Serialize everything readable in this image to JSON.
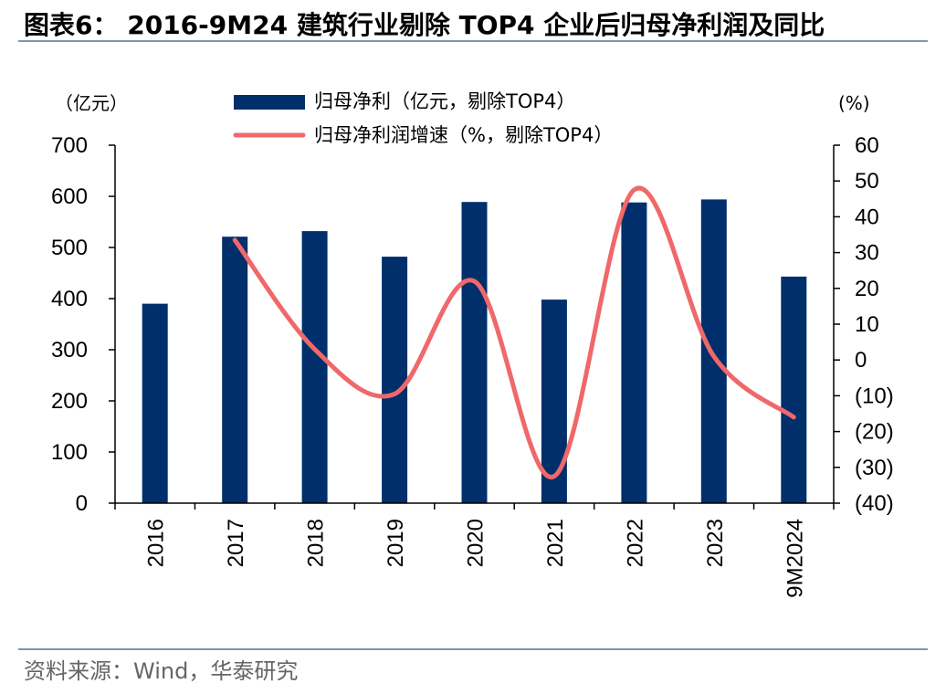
{
  "header": {
    "title": "图表6： 2016-9M24 建筑行业剔除 TOP4 企业后归母净利润及同比"
  },
  "footer": {
    "source": "资料来源：Wind，华泰研究"
  },
  "chart_data": {
    "type": "bar",
    "categories": [
      "2016",
      "2017",
      "2018",
      "2019",
      "2020",
      "2021",
      "2022",
      "2023",
      "9M2024"
    ],
    "series": [
      {
        "name": "归母净利（亿元，剔除TOP4）",
        "type": "bar",
        "axis": "left",
        "color": "#002f6c",
        "values": [
          390,
          521,
          532,
          482,
          589,
          398,
          588,
          594,
          443
        ]
      },
      {
        "name": "归母净利润增速（%，剔除TOP4）",
        "type": "line",
        "axis": "right",
        "color": "#f0686a",
        "values": [
          null,
          33.5,
          3.0,
          -9.5,
          22.0,
          -32.5,
          47.5,
          1.0,
          -16.0
        ]
      }
    ],
    "left_axis": {
      "unit": "（亿元）",
      "ylim": [
        0,
        700
      ],
      "ticks": [
        "0",
        "100",
        "200",
        "300",
        "400",
        "500",
        "600",
        "700"
      ]
    },
    "right_axis": {
      "unit": "(%)",
      "ylim": [
        -40,
        60
      ],
      "ticks": [
        "(40)",
        "(30)",
        "(20)",
        "(10)",
        "0",
        "10",
        "20",
        "30",
        "40",
        "50",
        "60"
      ]
    },
    "legend_position": "top-center",
    "grid": false
  }
}
